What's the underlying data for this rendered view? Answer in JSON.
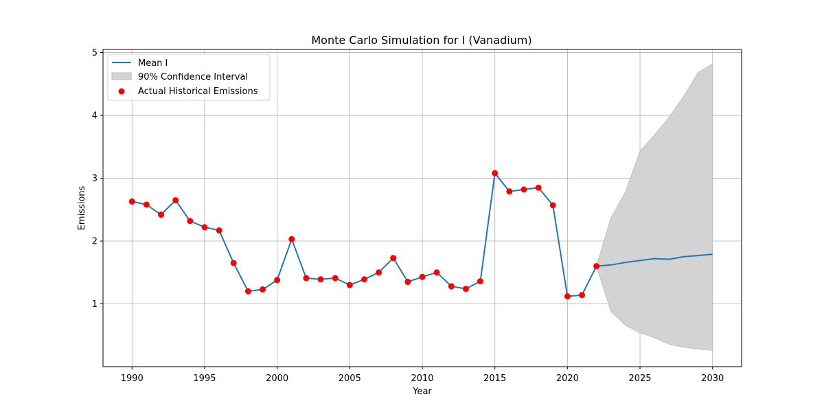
{
  "chart_data": {
    "type": "line",
    "title": "Monte Carlo Simulation for I (Vanadium)",
    "xlabel": "Year",
    "ylabel": "Emissions",
    "xlim": [
      1988,
      2032
    ],
    "ylim": [
      0,
      5.05
    ],
    "xticks": [
      1990,
      1995,
      2000,
      2005,
      2010,
      2015,
      2020,
      2025,
      2030
    ],
    "yticks": [
      1,
      2,
      3,
      4,
      5
    ],
    "grid": true,
    "legend_position": "upper left",
    "legend": [
      "Mean I",
      "90% Confidence Interval",
      "Actual Historical Emissions"
    ],
    "colors": {
      "mean": "#1f77b4",
      "ci": "#d3d3d3",
      "ci_edge": "#bdbdbd",
      "historical": "#ff0000",
      "grid": "#b0b0b0"
    },
    "mean": {
      "x": [
        1990,
        1991,
        1992,
        1993,
        1994,
        1995,
        1996,
        1997,
        1998,
        1999,
        2000,
        2001,
        2002,
        2003,
        2004,
        2005,
        2006,
        2007,
        2008,
        2009,
        2010,
        2011,
        2012,
        2013,
        2014,
        2015,
        2016,
        2017,
        2018,
        2019,
        2020,
        2021,
        2022,
        2023,
        2024,
        2025,
        2026,
        2027,
        2028,
        2029,
        2030
      ],
      "y": [
        2.63,
        2.58,
        2.42,
        2.65,
        2.32,
        2.22,
        2.17,
        1.65,
        1.2,
        1.23,
        1.38,
        2.03,
        1.41,
        1.39,
        1.41,
        1.3,
        1.39,
        1.5,
        1.73,
        1.35,
        1.43,
        1.5,
        1.28,
        1.24,
        1.36,
        3.08,
        2.79,
        2.82,
        2.85,
        2.57,
        1.12,
        1.14,
        1.6,
        1.62,
        1.66,
        1.69,
        1.72,
        1.71,
        1.75,
        1.77,
        1.79
      ]
    },
    "confidence_interval": {
      "x": [
        2022,
        2023,
        2024,
        2025,
        2026,
        2027,
        2028,
        2029,
        2030
      ],
      "lower": [
        1.6,
        0.88,
        0.66,
        0.54,
        0.46,
        0.36,
        0.31,
        0.28,
        0.26
      ],
      "upper": [
        1.6,
        2.37,
        2.78,
        3.43,
        3.69,
        3.97,
        4.3,
        4.68,
        4.82
      ]
    },
    "historical": {
      "x": [
        1990,
        1991,
        1992,
        1993,
        1994,
        1995,
        1996,
        1997,
        1998,
        1999,
        2000,
        2001,
        2002,
        2003,
        2004,
        2005,
        2006,
        2007,
        2008,
        2009,
        2010,
        2011,
        2012,
        2013,
        2014,
        2015,
        2016,
        2017,
        2018,
        2019,
        2020,
        2021,
        2022
      ],
      "y": [
        2.63,
        2.58,
        2.42,
        2.65,
        2.32,
        2.22,
        2.17,
        1.65,
        1.2,
        1.23,
        1.38,
        2.03,
        1.41,
        1.39,
        1.41,
        1.3,
        1.39,
        1.5,
        1.73,
        1.35,
        1.43,
        1.5,
        1.28,
        1.24,
        1.36,
        3.08,
        2.79,
        2.82,
        2.85,
        2.57,
        1.12,
        1.14,
        1.6
      ]
    }
  }
}
